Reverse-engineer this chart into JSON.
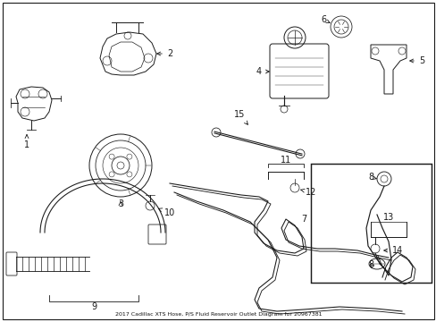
{
  "title": "2017 Cadillac XTS Hose, P/S Fluid Reservoir Outlet Diagram for 20967381",
  "background_color": "#ffffff",
  "border_color": "#000000",
  "text_color": "#111111",
  "figsize": [
    4.89,
    3.6
  ],
  "dpi": 100,
  "lw": 0.7,
  "color": "#1a1a1a"
}
